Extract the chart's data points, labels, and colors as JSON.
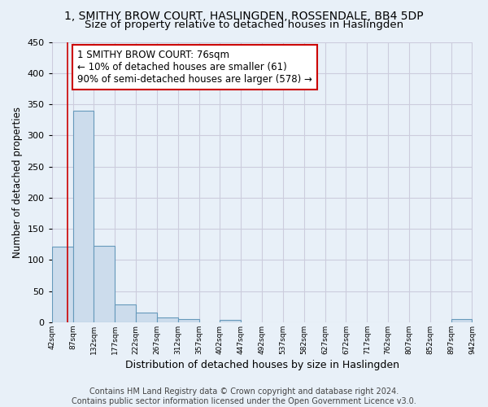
{
  "title": "1, SMITHY BROW COURT, HASLINGDEN, ROSSENDALE, BB4 5DP",
  "subtitle": "Size of property relative to detached houses in Haslingden",
  "xlabel": "Distribution of detached houses by size in Haslingden",
  "ylabel": "Number of detached properties",
  "bin_edges": [
    42,
    87,
    132,
    177,
    222,
    267,
    312,
    357,
    402,
    447,
    492,
    537,
    582,
    627,
    672,
    717,
    762,
    807,
    852,
    897,
    942
  ],
  "bar_heights": [
    122,
    340,
    123,
    29,
    16,
    8,
    5,
    0,
    4,
    0,
    0,
    0,
    0,
    0,
    0,
    0,
    0,
    0,
    0,
    5
  ],
  "bar_color": "#ccdcec",
  "bar_edgecolor": "#6699bb",
  "property_line_x": 76,
  "property_line_color": "#cc0000",
  "annotation_line1": "1 SMITHY BROW COURT: 76sqm",
  "annotation_line2": "← 10% of detached houses are smaller (61)",
  "annotation_line3": "90% of semi-detached houses are larger (578) →",
  "annotation_box_color": "#ffffff",
  "annotation_box_edgecolor": "#cc0000",
  "annotation_fontsize": 8.5,
  "ylim": [
    0,
    450
  ],
  "tick_labels": [
    "42sqm",
    "87sqm",
    "132sqm",
    "177sqm",
    "222sqm",
    "267sqm",
    "312sqm",
    "357sqm",
    "402sqm",
    "447sqm",
    "492sqm",
    "537sqm",
    "582sqm",
    "627sqm",
    "672sqm",
    "717sqm",
    "762sqm",
    "807sqm",
    "852sqm",
    "897sqm",
    "942sqm"
  ],
  "footer_line1": "Contains HM Land Registry data © Crown copyright and database right 2024.",
  "footer_line2": "Contains public sector information licensed under the Open Government Licence v3.0.",
  "background_color": "#e8f0f8",
  "grid_color": "#ccccdd",
  "title_fontsize": 10,
  "subtitle_fontsize": 9.5,
  "xlabel_fontsize": 9,
  "ylabel_fontsize": 8.5,
  "footer_fontsize": 7,
  "yticks": [
    0,
    50,
    100,
    150,
    200,
    250,
    300,
    350,
    400,
    450
  ]
}
